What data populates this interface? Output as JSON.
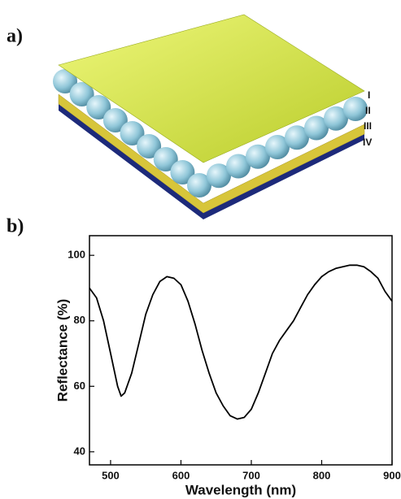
{
  "panels": {
    "a": "a)",
    "b": "b)"
  },
  "layers": [
    "I",
    "II",
    "III",
    "IV"
  ],
  "chart_data": {
    "type": "line",
    "x_label": "Wavelength (nm)",
    "y_label": "Reflectance (%)",
    "color": "#000000",
    "x": [
      470,
      480,
      490,
      500,
      510,
      515,
      520,
      530,
      540,
      550,
      560,
      570,
      580,
      590,
      600,
      610,
      620,
      630,
      640,
      650,
      660,
      670,
      680,
      690,
      700,
      710,
      720,
      730,
      740,
      750,
      760,
      770,
      780,
      790,
      800,
      810,
      820,
      830,
      840,
      850,
      860,
      870,
      880,
      890,
      900
    ],
    "values": [
      90,
      87,
      80,
      70,
      60,
      57,
      58,
      64,
      73,
      82,
      88,
      92,
      93.5,
      93,
      91,
      86,
      79,
      71,
      64,
      58,
      54,
      51,
      50,
      50.5,
      53,
      58,
      64,
      70,
      74,
      77,
      80,
      84,
      88,
      91,
      93.5,
      95,
      96,
      96.5,
      97,
      97,
      96.5,
      95,
      93,
      89,
      86
    ],
    "xlim": [
      470,
      900
    ],
    "ylim": [
      36,
      106
    ],
    "xticks": [
      500,
      600,
      700,
      800,
      900
    ],
    "yticks": [
      40,
      60,
      80,
      100
    ]
  }
}
